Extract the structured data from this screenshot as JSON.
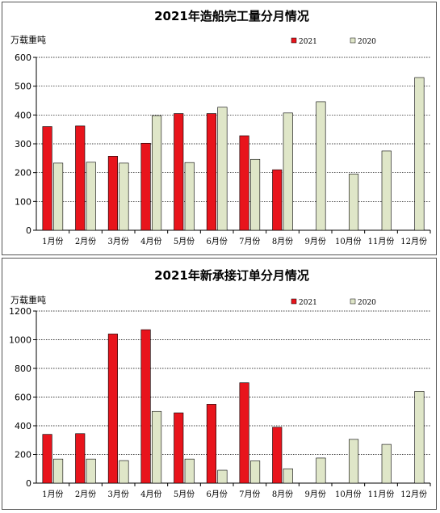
{
  "chart_data": [
    {
      "type": "bar",
      "title": "2021年造船完工量分月情况",
      "unit_label": "万载重吨",
      "categories": [
        "1月份",
        "2月份",
        "3月份",
        "4月份",
        "5月份",
        "6月份",
        "7月份",
        "8月份",
        "9月份",
        "10月份",
        "11月份",
        "12月份"
      ],
      "series": [
        {
          "name": "2021",
          "color": "#e8141c",
          "values": [
            360,
            362,
            257,
            302,
            405,
            405,
            328,
            210,
            null,
            null,
            null,
            null
          ]
        },
        {
          "name": "2020",
          "color": "#dfe6c8",
          "values": [
            233,
            236,
            233,
            398,
            235,
            427,
            246,
            407,
            446,
            195,
            275,
            530
          ]
        }
      ],
      "ylim": [
        0,
        600
      ],
      "yticks": [
        0,
        100,
        200,
        300,
        400,
        500,
        600
      ],
      "grid": true,
      "legend_position": "top-right"
    },
    {
      "type": "bar",
      "title": "2021年新承接订单分月情况",
      "unit_label": "万载重吨",
      "categories": [
        "1月份",
        "2月份",
        "3月份",
        "4月份",
        "5月份",
        "6月份",
        "7月份",
        "8月份",
        "9月份",
        "10月份",
        "11月份",
        "12月份"
      ],
      "series": [
        {
          "name": "2021",
          "color": "#e8141c",
          "values": [
            340,
            345,
            1040,
            1070,
            490,
            550,
            700,
            390,
            null,
            null,
            null,
            null
          ]
        },
        {
          "name": "2020",
          "color": "#dfe6c8",
          "values": [
            168,
            168,
            157,
            500,
            168,
            90,
            155,
            100,
            175,
            305,
            270,
            640
          ]
        }
      ],
      "ylim": [
        0,
        1200
      ],
      "yticks": [
        0,
        200,
        400,
        600,
        800,
        1000,
        1200
      ],
      "grid": true,
      "legend_position": "top-right"
    }
  ]
}
